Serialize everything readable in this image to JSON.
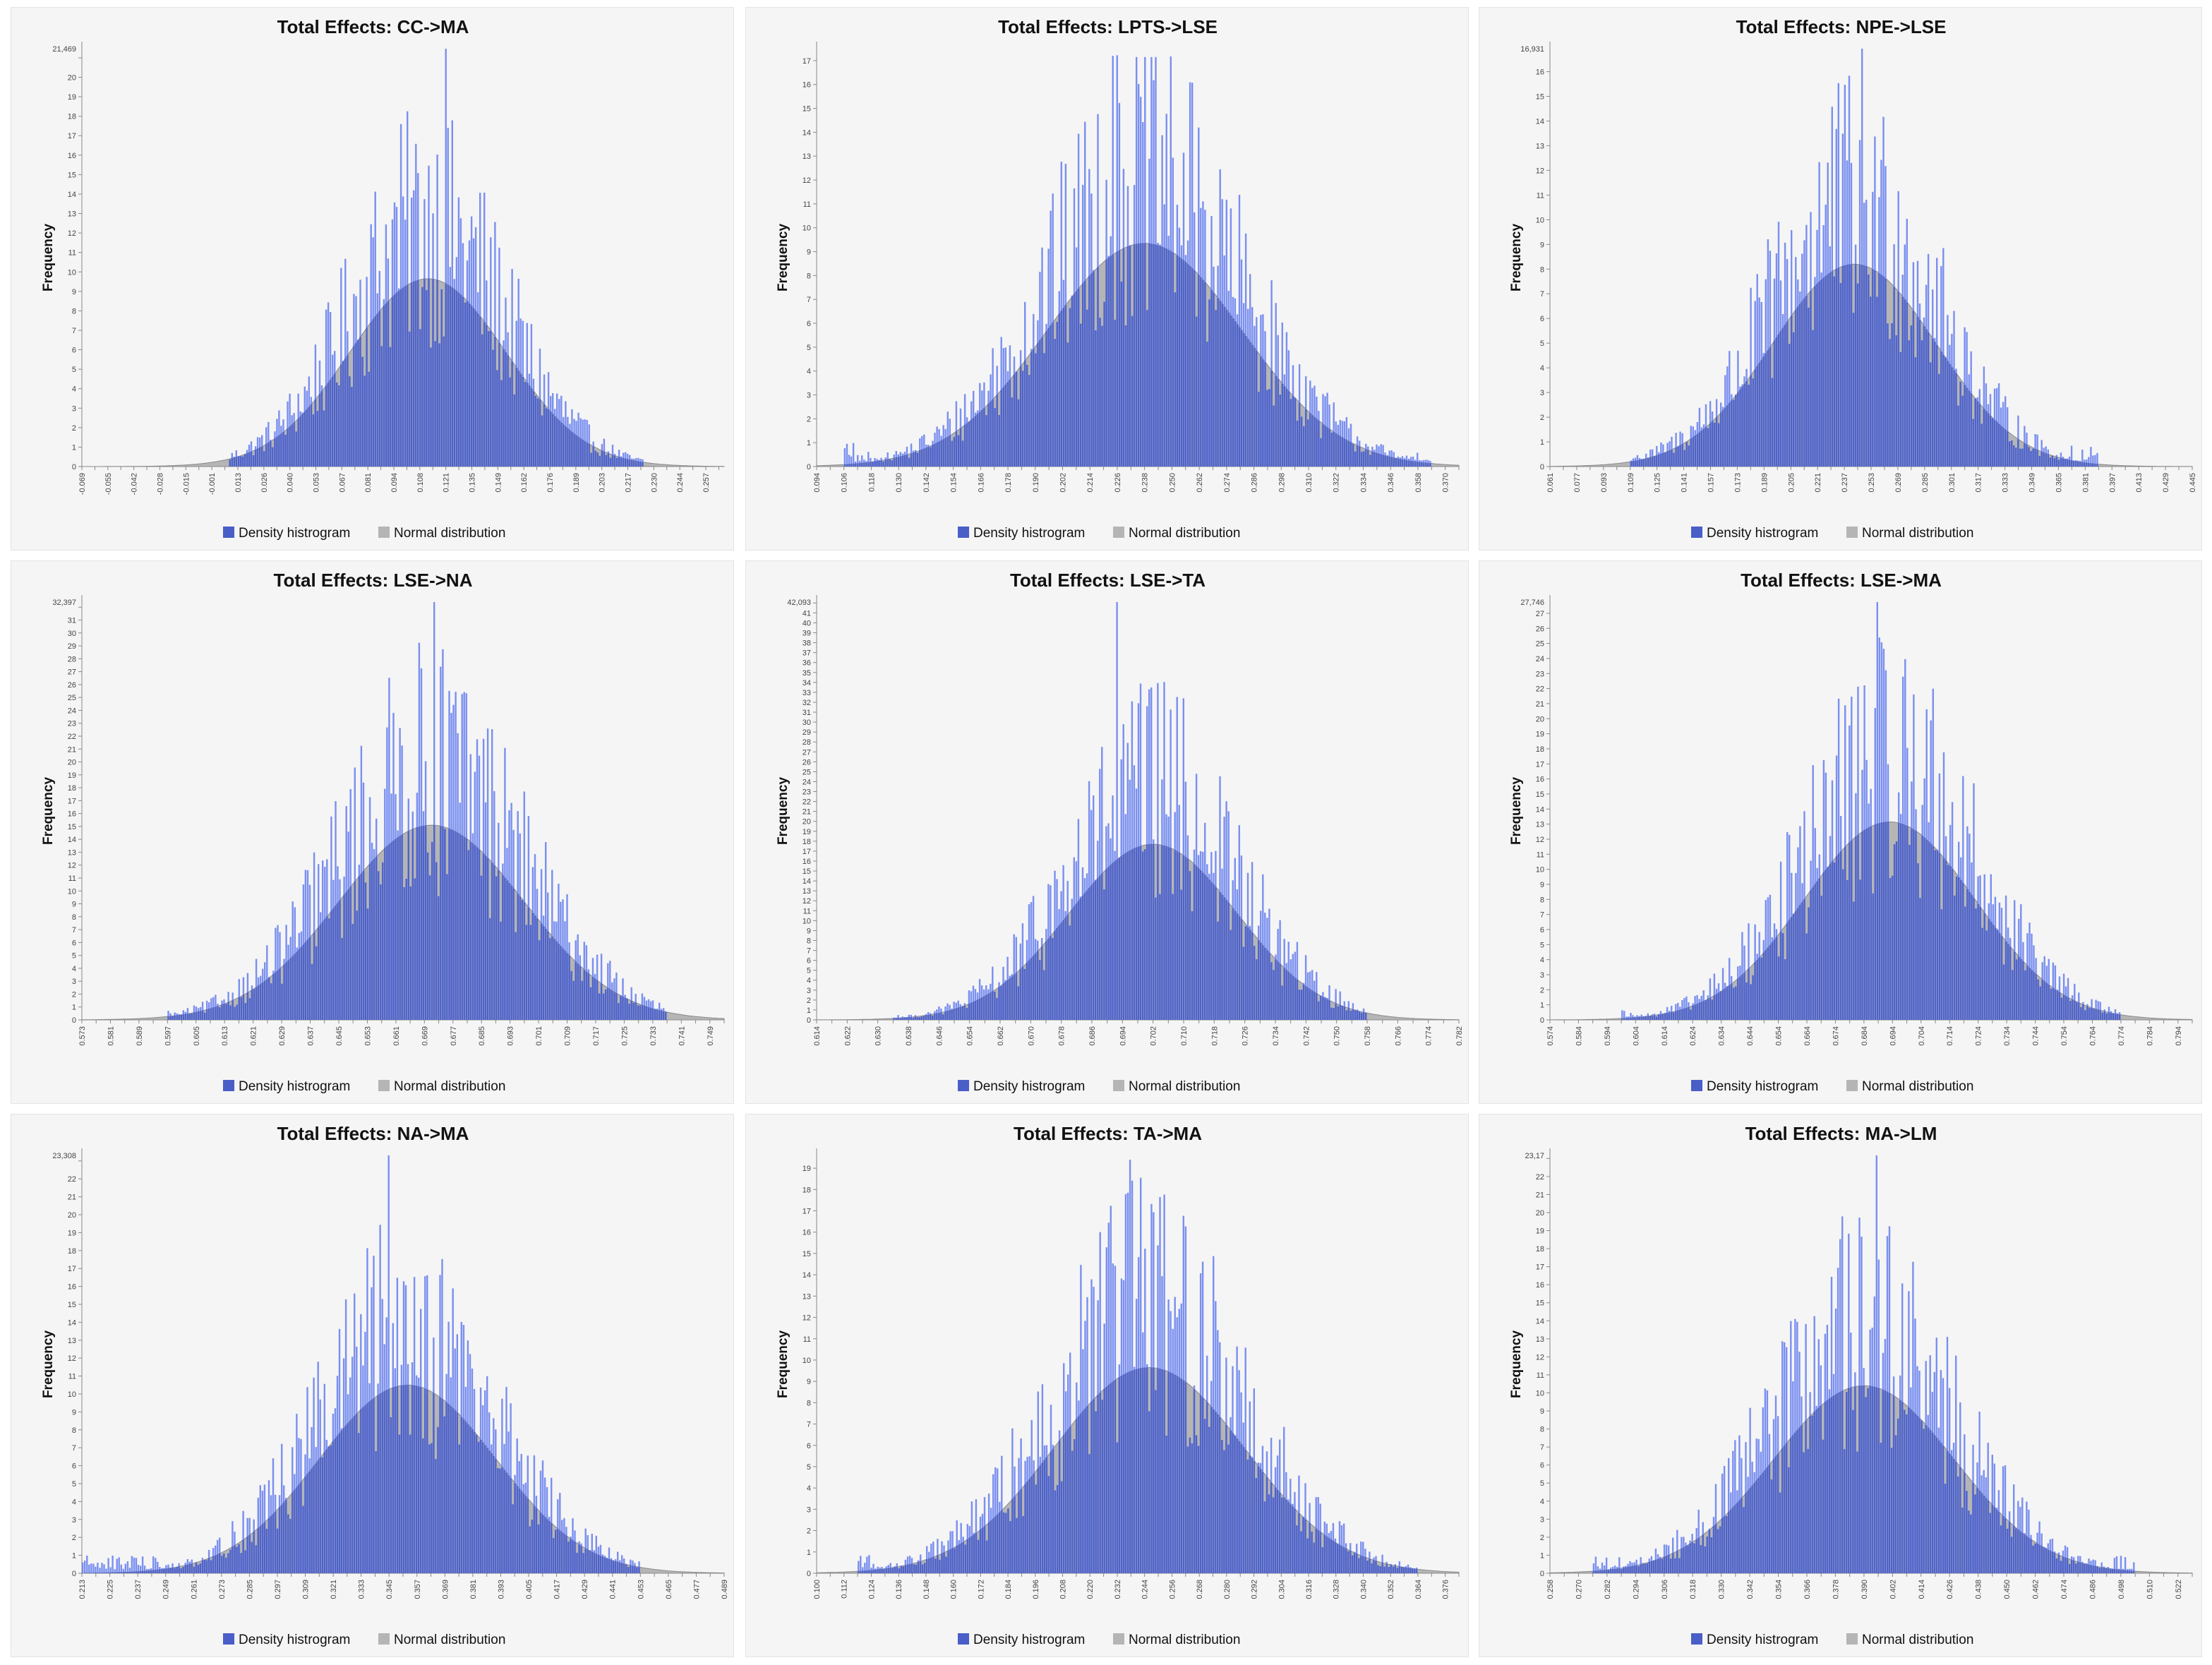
{
  "legend": {
    "histogram": "Density histrogram",
    "normal": "Normal distribution"
  },
  "colors": {
    "histogram": "#6f86ee",
    "normal_fill": "#b5b5b5",
    "normal_overlap": "#4a5ec8",
    "panel_bg": "#f5f5f5"
  },
  "chart_data": [
    {
      "type": "bar",
      "title": "Total Effects: CC->MA",
      "ylabel": "Frequency",
      "xlabel": "",
      "x_range": [
        -0.069,
        0.267
      ],
      "x_tick_step": 0.0068,
      "y_max_label": "21,469",
      "ylim": [
        0,
        21.469
      ],
      "data_min": 0.008,
      "data_max": 0.225,
      "peak_value": 21.469,
      "normal_mean": 0.112,
      "normal_sd": 0.041,
      "normal_peak": 9.65
    },
    {
      "type": "bar",
      "title": "Total Effects: LPTS->LSE",
      "ylabel": "Frequency",
      "xlabel": "",
      "x_range": [
        0.094,
        0.376
      ],
      "x_tick_step": 0.006,
      "y_max_label": "",
      "ylim": [
        0,
        17.5
      ],
      "data_min": 0.106,
      "data_max": 0.364,
      "peak_value": 17.2,
      "normal_mean": 0.238,
      "normal_sd": 0.043,
      "normal_peak": 9.35
    },
    {
      "type": "bar",
      "title": "Total Effects: NPE->LSE",
      "ylabel": "Frequency",
      "xlabel": "",
      "x_range": [
        0.061,
        0.445
      ],
      "x_tick_step": 0.008,
      "y_max_label": "16,931",
      "ylim": [
        0,
        16.931
      ],
      "data_min": 0.109,
      "data_max": 0.389,
      "peak_value": 16.931,
      "normal_mean": 0.243,
      "normal_sd": 0.049,
      "normal_peak": 8.2
    },
    {
      "type": "bar",
      "title": "Total Effects: LSE->NA",
      "ylabel": "Frequency",
      "xlabel": "",
      "x_range": [
        0.573,
        0.753
      ],
      "x_tick_step": 0.004,
      "y_max_label": "32,397",
      "ylim": [
        0,
        32.397
      ],
      "data_min": 0.597,
      "data_max": 0.737,
      "peak_value": 32.397,
      "normal_mean": 0.671,
      "normal_sd": 0.026,
      "normal_peak": 15.1
    },
    {
      "type": "bar",
      "title": "Total Effects: LSE->TA",
      "ylabel": "Frequency",
      "xlabel": "",
      "x_range": [
        0.614,
        0.782
      ],
      "x_tick_step": 0.004,
      "y_max_label": "42,093",
      "ylim": [
        0,
        42.093
      ],
      "data_min": 0.634,
      "data_max": 0.758,
      "peak_value": 42.093,
      "normal_mean": 0.702,
      "normal_sd": 0.022,
      "normal_peak": 17.7
    },
    {
      "type": "bar",
      "title": "Total Effects: LSE->MA",
      "ylabel": "Frequency",
      "xlabel": "",
      "x_range": [
        0.574,
        0.799
      ],
      "x_tick_step": 0.005,
      "y_max_label": "27,746",
      "ylim": [
        0,
        27.746
      ],
      "data_min": 0.599,
      "data_max": 0.774,
      "peak_value": 27.746,
      "normal_mean": 0.693,
      "normal_sd": 0.03,
      "normal_peak": 13.15
    },
    {
      "type": "bar",
      "title": "Total Effects: NA->MA",
      "ylabel": "Frequency",
      "xlabel": "",
      "x_range": [
        0.213,
        0.489
      ],
      "x_tick_step": 0.006,
      "y_max_label": "23,308",
      "ylim": [
        0,
        23.308
      ],
      "data_min": 0.213,
      "data_max": 0.453,
      "peak_value": 23.308,
      "normal_mean": 0.353,
      "normal_sd": 0.038,
      "normal_peak": 10.5
    },
    {
      "type": "bar",
      "title": "Total Effects: TA->MA",
      "ylabel": "Frequency",
      "xlabel": "",
      "x_range": [
        0.1,
        0.382
      ],
      "x_tick_step": 0.006,
      "y_max_label": "",
      "ylim": [
        0,
        19.6
      ],
      "data_min": 0.118,
      "data_max": 0.364,
      "peak_value": 19.4,
      "normal_mean": 0.246,
      "normal_sd": 0.042,
      "normal_peak": 9.65
    },
    {
      "type": "bar",
      "title": "Total Effects: MA->LM",
      "ylabel": "Frequency",
      "xlabel": "",
      "x_range": [
        0.258,
        0.528
      ],
      "x_tick_step": 0.006,
      "y_max_label": "23,17",
      "ylim": [
        0,
        23.17
      ],
      "data_min": 0.276,
      "data_max": 0.504,
      "peak_value": 23.17,
      "normal_mean": 0.39,
      "normal_sd": 0.038,
      "normal_peak": 10.4
    }
  ]
}
